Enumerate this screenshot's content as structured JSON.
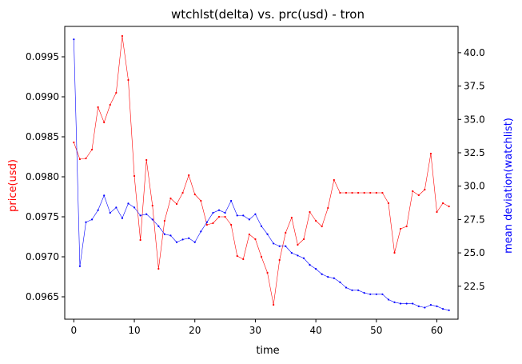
{
  "chart_data": {
    "type": "line",
    "title": "wtchlst(delta) vs. prc(usd) - tron",
    "xlabel": "time",
    "x": [
      0,
      1,
      2,
      3,
      4,
      5,
      6,
      7,
      8,
      9,
      10,
      11,
      12,
      13,
      14,
      15,
      16,
      17,
      18,
      19,
      20,
      21,
      22,
      23,
      24,
      25,
      26,
      27,
      28,
      29,
      30,
      31,
      32,
      33,
      34,
      35,
      36,
      37,
      38,
      39,
      40,
      41,
      42,
      43,
      44,
      45,
      46,
      47,
      48,
      49,
      50,
      51,
      52,
      53,
      54,
      55,
      56,
      57,
      58,
      59,
      60,
      61,
      62
    ],
    "xlim": [
      -1.5,
      63.5
    ],
    "xticks": [
      0,
      10,
      20,
      30,
      40,
      50,
      60
    ],
    "grid": false,
    "legend": "none",
    "series": [
      {
        "axis": "left",
        "color": "#ff0000",
        "values": [
          0.09843,
          0.09822,
          0.09823,
          0.09834,
          0.09887,
          0.09868,
          0.0989,
          0.09905,
          0.09976,
          0.09921,
          0.09801,
          0.09721,
          0.09821,
          0.09764,
          0.09685,
          0.09745,
          0.09773,
          0.09766,
          0.0978,
          0.09802,
          0.09778,
          0.0977,
          0.0974,
          0.09742,
          0.0975,
          0.0975,
          0.0974,
          0.09701,
          0.09697,
          0.09728,
          0.09722,
          0.097,
          0.0968,
          0.0964,
          0.09696,
          0.0973,
          0.09749,
          0.09715,
          0.09722,
          0.09756,
          0.09745,
          0.09738,
          0.09761,
          0.09796,
          0.0978,
          0.0978,
          0.0978,
          0.0978,
          0.0978,
          0.0978,
          0.0978,
          0.0978,
          0.09767,
          0.09705,
          0.09735,
          0.09738,
          0.09782,
          0.09777,
          0.09784,
          0.09829,
          0.09756,
          0.09767,
          0.09763
        ]
      },
      {
        "axis": "right",
        "color": "#0000ff",
        "values": [
          41.0,
          24.0,
          27.3,
          27.5,
          28.2,
          29.3,
          28.0,
          28.4,
          27.6,
          28.7,
          28.4,
          27.8,
          27.9,
          27.5,
          27.0,
          26.4,
          26.3,
          25.8,
          26.0,
          26.1,
          25.8,
          26.6,
          27.3,
          28.0,
          28.2,
          28.0,
          28.9,
          27.8,
          27.8,
          27.5,
          27.9,
          27.0,
          26.4,
          25.7,
          25.5,
          25.5,
          25.0,
          24.8,
          24.6,
          24.1,
          23.8,
          23.4,
          23.2,
          23.1,
          22.8,
          22.4,
          22.2,
          22.2,
          22.0,
          21.9,
          21.9,
          21.9,
          21.5,
          21.3,
          21.2,
          21.2,
          21.2,
          21.0,
          20.9,
          21.1,
          21.0,
          20.8,
          20.7
        ]
      }
    ],
    "y_left": {
      "label": "price(usd)",
      "color": "#ff0000",
      "ylim": [
        0.09622,
        0.09988
      ],
      "ticks": [
        0.0965,
        0.097,
        0.0975,
        0.098,
        0.0985,
        0.099,
        0.0995
      ],
      "tick_labels": [
        "0.0965",
        "0.0970",
        "0.0975",
        "0.0980",
        "0.0985",
        "0.0990",
        "0.0995"
      ]
    },
    "y_right": {
      "label": "mean deviation(watchlist)",
      "color": "#0000ff",
      "ylim": [
        20.03,
        41.97
      ],
      "ticks": [
        22.5,
        25.0,
        27.5,
        30.0,
        32.5,
        35.0,
        37.5,
        40.0
      ],
      "tick_labels": [
        "22.5",
        "25.0",
        "27.5",
        "30.0",
        "32.5",
        "35.0",
        "37.5",
        "40.0"
      ]
    }
  }
}
